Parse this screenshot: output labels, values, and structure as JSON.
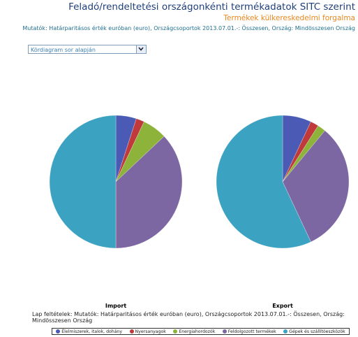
{
  "header": {
    "title": "Feladó/rendeltetési országonkénti termékadatok SITC szerint",
    "subtitle": "Termékek külkereskedelmi forgalma",
    "indicators": "Mutatók: Határparitásos érték euróban (euro), Országcsoportok 2013.07.01.-: Összesen, Ország: Mindösszesen Ország"
  },
  "dropdown": "Kördiagram sor alapján",
  "legend": {
    "categories": [
      "Élelmiszerek, italok, dohány",
      "Nyersanyagok",
      "Energiahordozók",
      "Feldolgozott termékek",
      "Gépek és szállítóeszközök"
    ],
    "colors": [
      "#4a5ab5",
      "#c0393b",
      "#8db33a",
      "#7c67a3",
      "#3ba2c1"
    ]
  },
  "chart_data": [
    {
      "type": "pie",
      "title": "Import",
      "values": [
        5,
        2,
        6,
        37,
        50
      ]
    },
    {
      "type": "pie",
      "title": "Export",
      "values": [
        7,
        2,
        2,
        32,
        57
      ]
    }
  ],
  "footer": "Lap feltételek: Mutatók: Határparitásos érték euróban (euro), Országcsoportok 2013.07.01.-: Összesen, Ország: Mindösszesen Ország"
}
